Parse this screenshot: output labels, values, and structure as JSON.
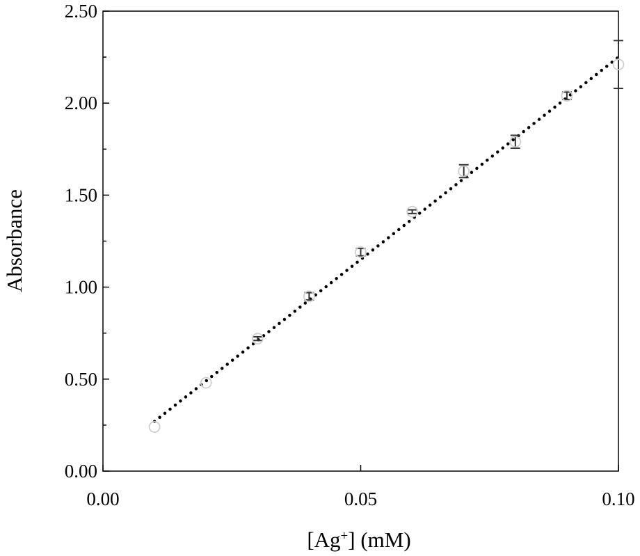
{
  "chart_data": {
    "type": "scatter",
    "title": "",
    "xlabel": {
      "base": "[Ag",
      "sup": "+",
      "rest": "] (mM)"
    },
    "ylabel": "Absorbance",
    "xlim": [
      0.0,
      0.1
    ],
    "ylim": [
      0.0,
      2.5
    ],
    "x_ticks": [
      "0.00",
      "0.05",
      "0.10"
    ],
    "y_ticks": [
      "0.00",
      "0.50",
      "1.00",
      "1.50",
      "2.00",
      "2.50"
    ],
    "grid": false,
    "legend": "none",
    "series": [
      {
        "marker": "open-circle",
        "marker_color": "#cfcfcf",
        "error_bar_color": "#333333",
        "x": [
          0.01,
          0.02,
          0.03,
          0.04,
          0.05,
          0.06,
          0.07,
          0.08,
          0.09,
          0.1
        ],
        "y": [
          0.24,
          0.48,
          0.72,
          0.95,
          1.19,
          1.41,
          1.63,
          1.79,
          2.04,
          2.21
        ],
        "error": [
          0.0,
          0.0,
          0.01,
          0.02,
          0.02,
          0.01,
          0.035,
          0.035,
          0.02,
          0.13
        ]
      }
    ],
    "trendline": {
      "style": "dotted",
      "color": "#000000",
      "x": [
        0.01,
        0.1
      ],
      "y": [
        0.27,
        2.25
      ]
    }
  }
}
